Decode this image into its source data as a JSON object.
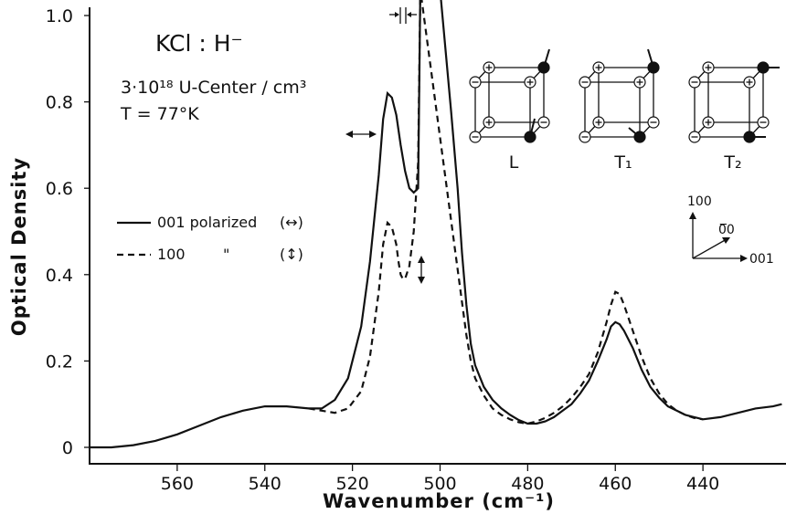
{
  "chart_data": {
    "type": "line",
    "title": "",
    "xlabel": "Wavenumber (cm⁻¹)",
    "ylabel": "Optical Density",
    "xlim": [
      580,
      420
    ],
    "ylim": [
      0,
      1.0
    ],
    "x_ticks": [
      {
        "value": 560,
        "label": "560"
      },
      {
        "value": 540,
        "label": "540"
      },
      {
        "value": 520,
        "label": "520"
      },
      {
        "value": 500,
        "label": "500"
      },
      {
        "value": 480,
        "label": "480"
      },
      {
        "value": 460,
        "label": "460"
      },
      {
        "value": 440,
        "label": "440"
      }
    ],
    "y_ticks": [
      {
        "value": 0,
        "label": "0"
      },
      {
        "value": 0.2,
        "label": "0.2"
      },
      {
        "value": 0.4,
        "label": "0.4"
      },
      {
        "value": 0.6,
        "label": "0.6"
      },
      {
        "value": 0.8,
        "label": "0.8"
      },
      {
        "value": 1.0,
        "label": "1.0"
      }
    ],
    "series": [
      {
        "name": "001 polarized",
        "style": "solid",
        "x": [
          580,
          575,
          570,
          565,
          560,
          555,
          550,
          545,
          540,
          535,
          530,
          527,
          524,
          521,
          518,
          516,
          514,
          513,
          512,
          511,
          510,
          509,
          508,
          507,
          506,
          505,
          504.5,
          504,
          500,
          497.5,
          497,
          496,
          495,
          494,
          493,
          492,
          490,
          488,
          486,
          484,
          482,
          480,
          478,
          476,
          474,
          472,
          470,
          468,
          466,
          464,
          462,
          461,
          460,
          459,
          458,
          456,
          454,
          452,
          450,
          448,
          446,
          444,
          442,
          440,
          436,
          432,
          428,
          424,
          422
        ],
        "y": [
          0.0,
          0.0,
          0.005,
          0.015,
          0.03,
          0.05,
          0.07,
          0.085,
          0.095,
          0.095,
          0.09,
          0.09,
          0.11,
          0.16,
          0.28,
          0.43,
          0.63,
          0.76,
          0.82,
          0.81,
          0.77,
          0.7,
          0.64,
          0.6,
          0.59,
          0.6,
          1.1,
          1.1,
          1.1,
          0.78,
          0.72,
          0.6,
          0.45,
          0.33,
          0.24,
          0.19,
          0.14,
          0.11,
          0.09,
          0.075,
          0.063,
          0.055,
          0.055,
          0.06,
          0.07,
          0.085,
          0.1,
          0.125,
          0.155,
          0.2,
          0.25,
          0.28,
          0.29,
          0.285,
          0.27,
          0.23,
          0.18,
          0.14,
          0.115,
          0.095,
          0.085,
          0.075,
          0.07,
          0.065,
          0.07,
          0.08,
          0.09,
          0.095,
          0.1
        ]
      },
      {
        "name": "100 \"",
        "style": "dashed",
        "x": [
          530,
          527,
          524,
          521,
          518,
          516,
          514,
          513,
          512,
          511,
          510,
          509.5,
          509,
          508.5,
          508,
          507,
          506,
          505,
          504.5,
          494,
          493,
          492,
          490,
          488,
          486,
          484,
          482,
          480,
          478,
          476,
          474,
          472,
          470,
          468,
          466,
          464,
          462,
          461,
          460,
          459,
          458,
          456,
          454,
          452,
          450,
          448,
          446,
          444,
          442,
          440
        ],
        "y": [
          0.09,
          0.085,
          0.08,
          0.09,
          0.13,
          0.21,
          0.36,
          0.47,
          0.52,
          0.51,
          0.47,
          0.43,
          0.4,
          0.39,
          0.39,
          0.42,
          0.5,
          0.66,
          1.1,
          0.26,
          0.2,
          0.16,
          0.12,
          0.09,
          0.075,
          0.065,
          0.058,
          0.055,
          0.06,
          0.068,
          0.08,
          0.095,
          0.115,
          0.14,
          0.17,
          0.22,
          0.29,
          0.33,
          0.36,
          0.355,
          0.33,
          0.27,
          0.21,
          0.16,
          0.125,
          0.1,
          0.085,
          0.075,
          0.068,
          0.065
        ]
      }
    ],
    "legend": {
      "placement": "center-left",
      "entries": [
        {
          "label": "001 polarized",
          "style": "solid",
          "symbol": "(↔)"
        },
        {
          "label": "100",
          "ditto": "\"",
          "style": "dashed",
          "symbol": "(↕)"
        }
      ]
    },
    "annotations": {
      "sample": "KCl : H⁻",
      "concentration": "3·10¹⁸ U-Center / cm³",
      "temperature": "T = 77°K"
    },
    "insets": {
      "modes": [
        {
          "label": "L"
        },
        {
          "label": "T₁"
        },
        {
          "label": "T₂"
        }
      ],
      "axes": [
        {
          "label": "100"
        },
        {
          "label": "0̅0"
        },
        {
          "label": "001"
        }
      ]
    }
  }
}
